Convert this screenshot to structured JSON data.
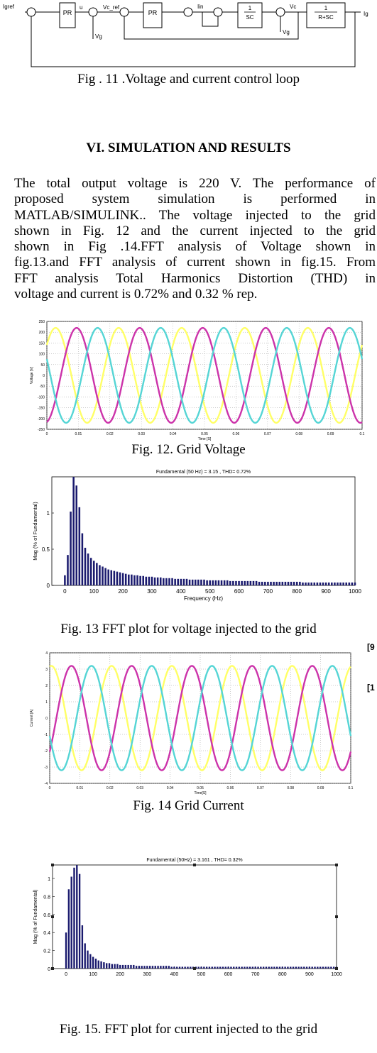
{
  "block_diagram": {
    "labels": {
      "iref": "Igref",
      "pr1": "PR",
      "u": "u",
      "vcref": "Vc_ref",
      "vg": "Vg",
      "pr2": "PR",
      "iin": "Iin",
      "integrator": [
        "1",
        "SC"
      ],
      "vc": "Vc",
      "vg2": "Vg",
      "plant": [
        "1",
        "R+SC"
      ],
      "out": "Ig"
    }
  },
  "captions": {
    "fig11": "Fig . 11 .Voltage and current control loop",
    "fig12": "Fig. 12. Grid Voltage",
    "fig13": "Fig. 13 FFT plot for voltage injected to the grid",
    "fig14": "Fig. 14 Grid Current",
    "fig15": "Fig. 15. FFT plot for current injected to the grid"
  },
  "section_heading": "VI. SIMULATION AND RESULTS",
  "paragraph_lines": [
    "The total output voltage is 220 V. The performance of",
    "proposed system simulation is performed in",
    "MATLAB/SIMULINK.. The voltage injected to the grid",
    "shown in Fig. 12 and the current injected to the grid",
    "shown in Fig .14.FFT analysis of Voltage shown in",
    "fig.13.and FFT analysis of current shown in fig.15. From",
    "FFT analysis Total Harmonics Distortion (THD) in",
    "voltage and current is 0.72% and 0.32 % rep."
  ],
  "margin_refs": [
    "[9",
    "[1"
  ],
  "colors": {
    "phase_a": "#ffff66",
    "phase_b": "#cc33aa",
    "phase_c": "#55d5d5",
    "bars": "#1a1a6e"
  },
  "chart_data": [
    {
      "type": "line",
      "title": "",
      "xlabel": "Time [S]",
      "ylabel": "Voltage [V]",
      "xlim": [
        0,
        0.1
      ],
      "ylim": [
        -250,
        250
      ],
      "xticks": [
        "0",
        "0.01",
        "0.02",
        "0.03",
        "0.04",
        "0.05",
        "0.06",
        "0.07",
        "0.08",
        "0.09",
        "0.1"
      ],
      "yticks": [
        "250",
        "200",
        "150",
        "100",
        "50",
        "0",
        "-50",
        "-100",
        "-150",
        "-200",
        "-250"
      ],
      "grid": true,
      "waveform": {
        "amplitude": 220,
        "frequency_hz": 50
      },
      "series": [
        {
          "phase_deg": 40,
          "color": "#ffff66"
        },
        {
          "phase_deg": -80,
          "color": "#cc33aa"
        },
        {
          "phase_deg": 160,
          "color": "#55d5d5"
        }
      ]
    },
    {
      "type": "bar",
      "title": "Fundamental (50 Hz) = 3.15 , THD= 0.72%",
      "xlabel": "Frequency (Hz)",
      "ylabel": "Mag (% of Fundamental)",
      "xlim": [
        -45,
        1000
      ],
      "ylim": [
        0,
        1.5
      ],
      "xticks": [
        "0",
        "100",
        "200",
        "300",
        "400",
        "500",
        "600",
        "700",
        "800",
        "900",
        "1000"
      ],
      "yticks": [
        "1",
        "0.5",
        "0"
      ],
      "bar_spacing_hz": 10,
      "values": [
        0.14,
        0.42,
        1.02,
        1.5,
        1.38,
        1.08,
        0.72,
        0.52,
        0.44,
        0.38,
        0.34,
        0.31,
        0.28,
        0.26,
        0.24,
        0.22,
        0.21,
        0.2,
        0.19,
        0.18,
        0.17,
        0.16,
        0.15,
        0.15,
        0.14,
        0.14,
        0.13,
        0.13,
        0.12,
        0.12,
        0.12,
        0.11,
        0.11,
        0.11,
        0.1,
        0.1,
        0.1,
        0.1,
        0.09,
        0.09,
        0.09,
        0.09,
        0.09,
        0.08,
        0.08,
        0.08,
        0.08,
        0.08,
        0.08,
        0.07,
        0.07,
        0.07,
        0.07,
        0.07,
        0.07,
        0.07,
        0.07,
        0.06,
        0.06,
        0.06,
        0.06,
        0.06,
        0.06,
        0.06,
        0.06,
        0.06,
        0.06,
        0.05,
        0.05,
        0.05,
        0.05,
        0.05,
        0.05,
        0.05,
        0.05,
        0.05,
        0.05,
        0.05,
        0.05,
        0.05,
        0.05,
        0.05,
        0.04,
        0.04,
        0.04,
        0.04,
        0.04,
        0.04,
        0.04,
        0.04,
        0.04,
        0.04,
        0.04,
        0.04,
        0.04,
        0.04,
        0.04,
        0.04,
        0.04,
        0.04,
        0.04
      ]
    },
    {
      "type": "line",
      "title": "",
      "xlabel": "Time[S]",
      "ylabel": "Current [A]",
      "xlim": [
        0,
        0.1
      ],
      "ylim": [
        -4,
        4
      ],
      "xticks": [
        "0",
        "0.01",
        "0.02",
        "0.03",
        "0.04",
        "0.05",
        "0.06",
        "0.07",
        "0.08",
        "0.09",
        "0.1"
      ],
      "yticks": [
        "4",
        "3",
        "2",
        "1",
        "0",
        "-1",
        "-2",
        "-3",
        "-4"
      ],
      "grid": true,
      "waveform": {
        "amplitude": 3.2,
        "frequency_hz": 50
      },
      "series": [
        {
          "phase_deg": 80,
          "color": "#ffff66"
        },
        {
          "phase_deg": -40,
          "color": "#cc33aa"
        },
        {
          "phase_deg": 200,
          "color": "#55d5d5"
        }
      ]
    },
    {
      "type": "bar",
      "title": "Fundamental (50Hz) = 3.161 , THD= 0.32%",
      "xlabel": "",
      "ylabel": "Mag (% of Fundamental)",
      "xlim": [
        -50,
        1000
      ],
      "ylim": [
        0,
        1.15
      ],
      "xticks": [
        "0",
        "100",
        "200",
        "300",
        "400",
        "500",
        "600",
        "700",
        "800",
        "900",
        "1000"
      ],
      "yticks": [
        "1",
        "0.8",
        "0.6",
        "0.4",
        "0.2",
        "0"
      ],
      "bar_spacing_hz": 10,
      "values": [
        0.4,
        0.88,
        1.02,
        1.12,
        1.15,
        1.05,
        0.48,
        0.28,
        0.2,
        0.16,
        0.13,
        0.11,
        0.09,
        0.08,
        0.07,
        0.06,
        0.06,
        0.05,
        0.05,
        0.05,
        0.04,
        0.04,
        0.04,
        0.04,
        0.04,
        0.04,
        0.03,
        0.03,
        0.03,
        0.03,
        0.03,
        0.03,
        0.03,
        0.03,
        0.03,
        0.03,
        0.03,
        0.03,
        0.03,
        0.02,
        0.02,
        0.02,
        0.02,
        0.02,
        0.02,
        0.02,
        0.02,
        0.02,
        0.02,
        0.02,
        0.02,
        0.02,
        0.02,
        0.02,
        0.02,
        0.02,
        0.02,
        0.02,
        0.02,
        0.02,
        0.02,
        0.02,
        0.02,
        0.02,
        0.02,
        0.02,
        0.02,
        0.02,
        0.02,
        0.02,
        0.02,
        0.02,
        0.02,
        0.02,
        0.02,
        0.02,
        0.02,
        0.02,
        0.02,
        0.02,
        0.02,
        0.02,
        0.02,
        0.02,
        0.02,
        0.02,
        0.02,
        0.02,
        0.02,
        0.02,
        0.02,
        0.02,
        0.02,
        0.02,
        0.02,
        0.02,
        0.02,
        0.02,
        0.02,
        0.02,
        0.02
      ]
    }
  ]
}
